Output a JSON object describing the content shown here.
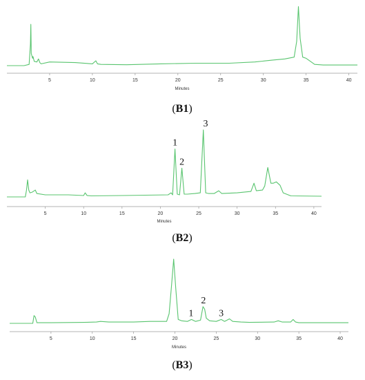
{
  "chart_data": [
    {
      "type": "line",
      "caption": {
        "open": "(",
        "bold": "B1",
        "close": ")"
      },
      "xlabel": "Minutes",
      "ylabel": "",
      "xlim": [
        0,
        41
      ],
      "xticks": [
        5,
        10,
        15,
        20,
        25,
        30,
        35,
        40
      ],
      "grid": false,
      "color": "#58c46e",
      "series": [
        {
          "x": [
            0,
            2,
            2.6,
            2.75,
            2.8,
            2.85,
            3.0,
            3.05,
            3.2,
            3.5,
            3.7,
            3.85,
            4.0,
            5,
            8,
            10,
            10.4,
            10.6,
            11,
            14,
            18,
            22,
            26,
            29,
            31,
            32.5,
            33.6,
            33.9,
            34.1,
            34.3,
            34.6,
            35.0,
            35.5,
            36,
            37,
            41
          ],
          "y": [
            0,
            0,
            0.02,
            0.35,
            0.68,
            0.2,
            0.12,
            0.15,
            0.07,
            0.06,
            0.11,
            0.05,
            0.03,
            0.06,
            0.05,
            0.03,
            0.08,
            0.03,
            0.02,
            0.015,
            0.03,
            0.04,
            0.04,
            0.06,
            0.09,
            0.11,
            0.14,
            0.4,
            0.97,
            0.45,
            0.14,
            0.12,
            0.07,
            0.02,
            0.01,
            0.01
          ]
        }
      ],
      "peak_labels": []
    },
    {
      "type": "line",
      "caption": {
        "open": "(",
        "bold": "B2",
        "close": ")"
      },
      "xlabel": "Minutes",
      "ylabel": "",
      "xlim": [
        0,
        41
      ],
      "xticks": [
        5,
        10,
        15,
        20,
        25,
        30,
        35,
        40
      ],
      "grid": false,
      "color": "#58c46e",
      "series": [
        {
          "x": [
            0,
            2.4,
            2.55,
            2.7,
            2.85,
            3.0,
            3.3,
            3.7,
            3.9,
            5,
            8,
            10,
            10.2,
            10.45,
            11,
            15,
            18,
            21,
            21.4,
            21.6,
            21.9,
            22.2,
            22.5,
            22.8,
            23.1,
            23.5,
            24.5,
            25.2,
            25.6,
            25.9,
            26.3,
            27,
            27.6,
            28,
            30,
            31.8,
            32.2,
            32.5,
            33.3,
            33.6,
            34.0,
            34.4,
            34.7,
            35.1,
            35.6,
            36,
            37,
            41
          ],
          "y": [
            0,
            0,
            0.1,
            0.25,
            0.1,
            0.06,
            0.07,
            0.1,
            0.05,
            0.03,
            0.03,
            0.02,
            0.06,
            0.02,
            0.015,
            0.02,
            0.025,
            0.03,
            0.06,
            0.03,
            0.7,
            0.04,
            0.03,
            0.42,
            0.04,
            0.04,
            0.05,
            0.06,
            0.98,
            0.06,
            0.05,
            0.05,
            0.09,
            0.05,
            0.06,
            0.08,
            0.2,
            0.09,
            0.1,
            0.16,
            0.43,
            0.2,
            0.2,
            0.22,
            0.17,
            0.06,
            0.015,
            0.01
          ]
        }
      ],
      "peak_labels": [
        {
          "text": "1",
          "x": 21.9
        },
        {
          "text": "2",
          "x": 22.8
        },
        {
          "text": "3",
          "x": 25.9
        }
      ]
    },
    {
      "type": "line",
      "caption": {
        "open": "(",
        "bold": "B3",
        "close": ")"
      },
      "xlabel": "Minutes",
      "ylabel": "",
      "xlim": [
        0,
        41
      ],
      "xticks": [
        5,
        10,
        15,
        20,
        25,
        30,
        35,
        40
      ],
      "grid": false,
      "color": "#58c46e",
      "series": [
        {
          "x": [
            0,
            2.8,
            2.95,
            3.1,
            3.3,
            5,
            9,
            10.5,
            11,
            12,
            15,
            17,
            18,
            19,
            19.3,
            19.6,
            19.85,
            20.1,
            20.4,
            20.8,
            21.5,
            22.0,
            22.5,
            23.1,
            23.4,
            23.6,
            23.8,
            24.2,
            25,
            25.6,
            26,
            26.3,
            26.6,
            27,
            28,
            29,
            32,
            32.5,
            33,
            34,
            34.3,
            34.6,
            35,
            37,
            41
          ],
          "y": [
            0,
            0,
            0.12,
            0.1,
            0.01,
            0.01,
            0.015,
            0.02,
            0.03,
            0.02,
            0.02,
            0.03,
            0.03,
            0.03,
            0.15,
            0.6,
            1.0,
            0.55,
            0.06,
            0.04,
            0.03,
            0.06,
            0.03,
            0.05,
            0.26,
            0.22,
            0.08,
            0.04,
            0.03,
            0.06,
            0.03,
            0.05,
            0.07,
            0.03,
            0.02,
            0.015,
            0.02,
            0.04,
            0.02,
            0.02,
            0.06,
            0.02,
            0.01,
            0.01,
            0.01
          ]
        }
      ],
      "peak_labels": [
        {
          "text": "1",
          "x": 21.95
        },
        {
          "text": "2",
          "x": 23.45
        },
        {
          "text": "3",
          "x": 25.6
        }
      ]
    }
  ]
}
